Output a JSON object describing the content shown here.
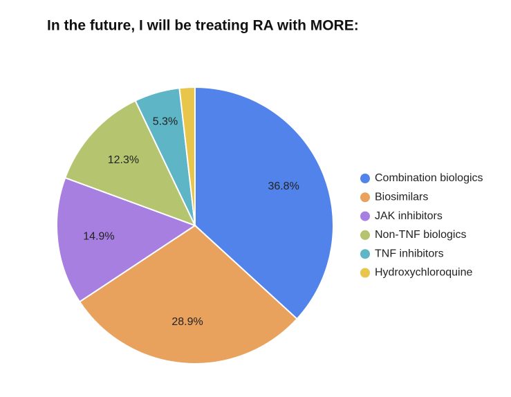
{
  "chart_data": {
    "type": "pie",
    "title": "In the future, I will be treating RA with MORE:",
    "categories": [
      "Combination biologics",
      "Biosimilars",
      "JAK inhibitors",
      "Non-TNF biologics",
      "TNF inhibitors",
      "Hydroxychloroquine"
    ],
    "values": [
      36.8,
      28.9,
      14.9,
      12.3,
      5.3,
      1.8
    ],
    "value_labels": [
      "36.8%",
      "28.9%",
      "14.9%",
      "12.3%",
      "5.3%",
      null
    ],
    "colors": [
      "#5183ea",
      "#e9a15e",
      "#a77fe0",
      "#b5c46f",
      "#5db5c6",
      "#e8c54b"
    ],
    "legend": "right"
  }
}
